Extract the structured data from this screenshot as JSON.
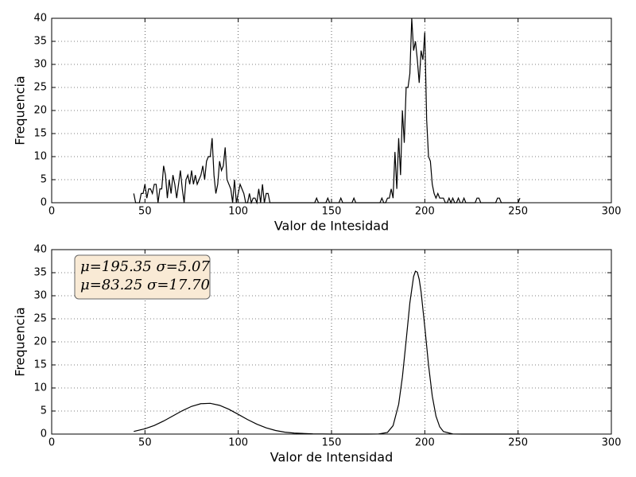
{
  "chart_data": [
    {
      "type": "line",
      "xlabel": "Valor de Intesidad",
      "ylabel": "Frequencia",
      "xlim": [
        0,
        300
      ],
      "ylim": [
        0,
        40
      ],
      "xticks": [
        0,
        50,
        100,
        150,
        200,
        250,
        300
      ],
      "yticks": [
        0,
        5,
        10,
        15,
        20,
        25,
        30,
        35,
        40
      ],
      "grid": true,
      "color": "#000000",
      "x": [
        44,
        45,
        46,
        47,
        48,
        49,
        50,
        51,
        52,
        53,
        54,
        55,
        56,
        57,
        58,
        59,
        60,
        61,
        62,
        63,
        64,
        65,
        66,
        67,
        68,
        69,
        70,
        71,
        72,
        73,
        74,
        75,
        76,
        77,
        78,
        79,
        80,
        81,
        82,
        83,
        84,
        85,
        86,
        87,
        88,
        89,
        90,
        91,
        92,
        93,
        94,
        95,
        96,
        97,
        98,
        99,
        100,
        101,
        102,
        103,
        104,
        105,
        106,
        107,
        108,
        109,
        110,
        111,
        112,
        113,
        114,
        115,
        116,
        117,
        118,
        119,
        120,
        121,
        122,
        123,
        124,
        125,
        126,
        127,
        128,
        129,
        130,
        131,
        132,
        133,
        134,
        135,
        136,
        137,
        138,
        139,
        140,
        141,
        142,
        143,
        144,
        145,
        146,
        147,
        148,
        149,
        150,
        151,
        152,
        153,
        154,
        155,
        156,
        157,
        158,
        159,
        160,
        161,
        162,
        163,
        164,
        165,
        166,
        167,
        168,
        169,
        170,
        171,
        172,
        173,
        174,
        175,
        176,
        177,
        178,
        179,
        180,
        181,
        182,
        183,
        184,
        185,
        186,
        187,
        188,
        189,
        190,
        191,
        192,
        193,
        194,
        195,
        196,
        197,
        198,
        199,
        200,
        201,
        202,
        203,
        204,
        205,
        206,
        207,
        208,
        209,
        210,
        211,
        212,
        213,
        214,
        215,
        216,
        217,
        218,
        219,
        220,
        221,
        222,
        223,
        224,
        225,
        226,
        227,
        228,
        229,
        230,
        231,
        232,
        233,
        234,
        235,
        236,
        237,
        238,
        239,
        240,
        241,
        242,
        243,
        244,
        245,
        246,
        247,
        248,
        249,
        250,
        251
      ],
      "values": [
        2,
        0,
        0,
        0,
        2,
        2,
        4,
        1,
        3,
        3,
        2,
        4,
        4,
        0,
        3,
        3,
        8,
        6,
        1,
        5,
        2,
        6,
        4,
        1,
        4,
        7,
        3,
        0,
        5,
        6,
        4,
        7,
        4,
        6,
        4,
        5,
        6,
        8,
        5,
        9,
        10,
        10,
        14,
        6,
        2,
        4,
        9,
        7,
        8,
        12,
        5,
        4,
        3,
        0,
        5,
        0,
        2,
        4,
        3,
        2,
        0,
        0,
        2,
        0,
        1,
        1,
        0,
        3,
        0,
        4,
        0,
        2,
        2,
        0,
        0,
        0,
        0,
        0,
        0,
        0,
        0,
        0,
        0,
        0,
        0,
        0,
        0,
        0,
        0,
        0,
        0,
        0,
        0,
        0,
        0,
        0,
        0,
        0,
        1,
        0,
        0,
        0,
        0,
        0,
        1,
        0,
        0,
        0,
        0,
        0,
        0,
        1,
        0,
        0,
        0,
        0,
        0,
        0,
        1,
        0,
        0,
        0,
        0,
        0,
        0,
        0,
        0,
        0,
        0,
        0,
        0,
        0,
        0,
        1,
        0,
        0,
        1,
        1,
        3,
        1,
        11,
        3,
        14,
        6,
        20,
        13,
        25,
        25,
        28,
        40,
        33,
        35,
        31,
        26,
        33,
        31,
        37,
        18,
        10,
        9,
        4,
        2,
        1,
        2,
        1,
        1,
        1,
        0,
        0,
        1,
        0,
        1,
        0,
        0,
        1,
        0,
        0,
        1,
        0,
        0,
        0,
        0,
        0,
        0,
        1,
        1,
        0,
        0,
        0,
        0,
        0,
        0,
        0,
        0,
        0,
        1,
        1,
        0,
        0,
        0,
        0,
        0,
        0,
        0,
        0,
        0,
        0,
        1
      ]
    },
    {
      "type": "line",
      "xlabel": "Valor de Intensidad",
      "ylabel": "Frequencia",
      "xlim": [
        0,
        300
      ],
      "ylim": [
        0,
        40
      ],
      "xticks": [
        0,
        50,
        100,
        150,
        200,
        250,
        300
      ],
      "yticks": [
        0,
        5,
        10,
        15,
        20,
        25,
        30,
        35,
        40
      ],
      "grid": true,
      "color": "#000000",
      "annotations": [
        "μ=195.35 σ=5.07",
        "μ=83.25 σ=17.70"
      ],
      "x": [
        44,
        50,
        55,
        60,
        65,
        70,
        75,
        80,
        85,
        90,
        95,
        100,
        105,
        110,
        115,
        120,
        125,
        130,
        140,
        150,
        160,
        170,
        175,
        180,
        183,
        186,
        188,
        190,
        192,
        194,
        195,
        196,
        197,
        198,
        200,
        202,
        204,
        206,
        208,
        210,
        215,
        220,
        230,
        240,
        251
      ],
      "values": [
        0.57,
        1.15,
        1.87,
        2.83,
        3.94,
        5.06,
        6.01,
        6.59,
        6.67,
        6.23,
        5.38,
        4.28,
        3.15,
        2.14,
        1.34,
        0.78,
        0.41,
        0.21,
        0.04,
        0.005,
        0,
        0,
        0.01,
        0.36,
        1.82,
        6.47,
        12.38,
        20.28,
        28.47,
        34.17,
        35.32,
        35.11,
        33.57,
        30.87,
        23.24,
        14.98,
        8.26,
        3.89,
        1.57,
        0.54,
        0.02,
        0,
        0,
        0,
        0
      ]
    }
  ]
}
